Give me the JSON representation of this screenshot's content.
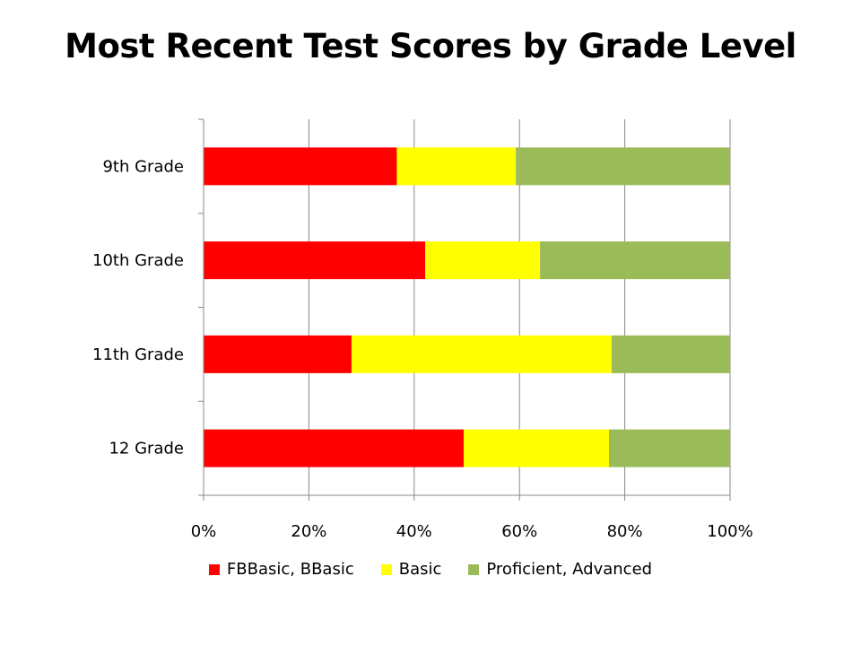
{
  "chart_data": {
    "type": "bar",
    "orientation": "horizontal",
    "stacked": "percent",
    "title": "Most Recent Test Scores by Grade Level",
    "categories": [
      "9th Grade",
      "10th Grade",
      "11th Grade",
      "12 Grade"
    ],
    "series": [
      {
        "name": "FBBasic, BBasic",
        "color": "#ff0000",
        "values": [
          36.7,
          42.1,
          28.1,
          49.4
        ]
      },
      {
        "name": "Basic",
        "color": "#ffff00",
        "values": [
          22.6,
          21.8,
          49.4,
          27.6
        ]
      },
      {
        "name": "Proficient, Advanced",
        "color": "#9bbb59",
        "values": [
          40.7,
          36.1,
          22.5,
          23.0
        ]
      }
    ],
    "xlim": [
      0,
      100
    ],
    "xticks": [
      "0%",
      "20%",
      "40%",
      "60%",
      "80%",
      "100%"
    ],
    "gridlines": true,
    "legend_position": "bottom"
  }
}
